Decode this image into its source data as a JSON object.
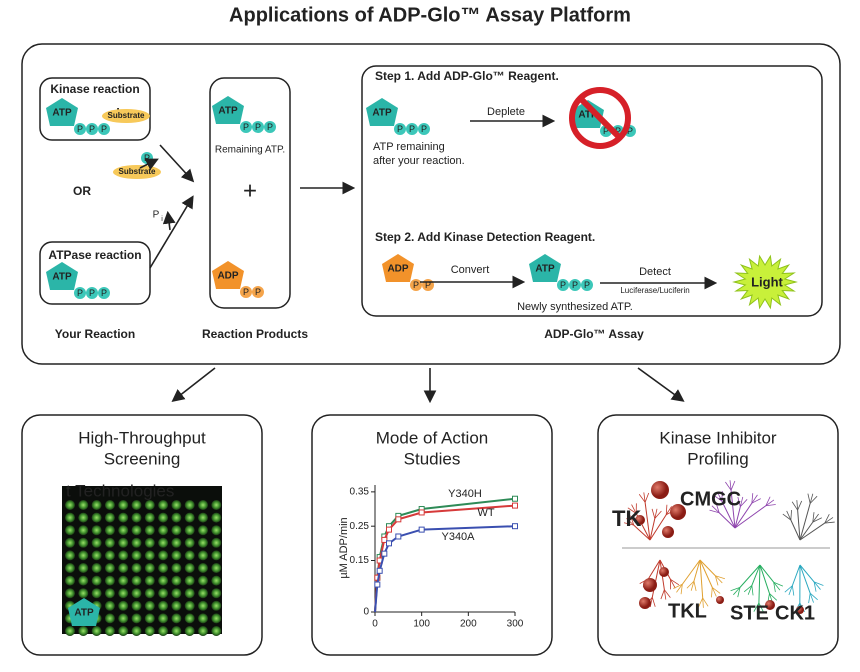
{
  "title": "Applications of ADP-Glo™ Assay Platform",
  "symbols": {
    "atp": "ATP",
    "adp": "ADP",
    "phosphate": "P",
    "plus": "+",
    "substrate": "Substrate"
  },
  "reaction": {
    "kinase_label": "Kinase reaction",
    "or": "OR",
    "pi": "P",
    "pi_sub": "i",
    "atpase_label": "ATPase reaction",
    "caption": "Your Reaction"
  },
  "products": {
    "remaining": "Remaining ATP.",
    "caption": "Reaction Products"
  },
  "assay": {
    "step1": "Step 1. Add ADP-Glo™ Reagent.",
    "deplete": "Deplete",
    "atp_remaining": [
      "ATP remaining",
      "after your reaction."
    ],
    "step2": "Step 2. Add Kinase Detection Reagent.",
    "convert": "Convert",
    "new_atp": "Newly synthesized ATP.",
    "detect": "Detect",
    "enzyme": "Luciferase/Luciferin",
    "light": "Light",
    "caption": "ADP-Glo™ Assay"
  },
  "panels": [
    {
      "title": [
        "High-Throughput",
        "Screening"
      ],
      "image_text": "t Technologies"
    },
    {
      "title": [
        "Mode of Action",
        "Studies"
      ]
    },
    {
      "title": [
        "Kinase Inhibitor",
        "Profiling"
      ],
      "groups": [
        "TK",
        "CMGC",
        "TKL",
        "STE",
        "CK1"
      ]
    }
  ],
  "chart_data": {
    "type": "line",
    "y_label": "µM ADP/min",
    "x": [
      5,
      10,
      20,
      30,
      50,
      100,
      300
    ],
    "series": [
      {
        "name": "Y340H",
        "color": "#2e8b57",
        "values": [
          0.1,
          0.16,
          0.22,
          0.25,
          0.28,
          0.3,
          0.33
        ]
      },
      {
        "name": "WT",
        "color": "#d63a3a",
        "values": [
          0.1,
          0.15,
          0.21,
          0.24,
          0.27,
          0.29,
          0.31
        ]
      },
      {
        "name": "Y340A",
        "color": "#3a4fb0",
        "values": [
          0.08,
          0.12,
          0.17,
          0.2,
          0.22,
          0.24,
          0.25
        ]
      }
    ],
    "xlim": [
      0,
      300
    ],
    "xticks": [
      0,
      100,
      200,
      300
    ],
    "ylim": [
      0,
      0.37
    ],
    "yticks": [
      0,
      0.15,
      0.25,
      0.35
    ]
  }
}
